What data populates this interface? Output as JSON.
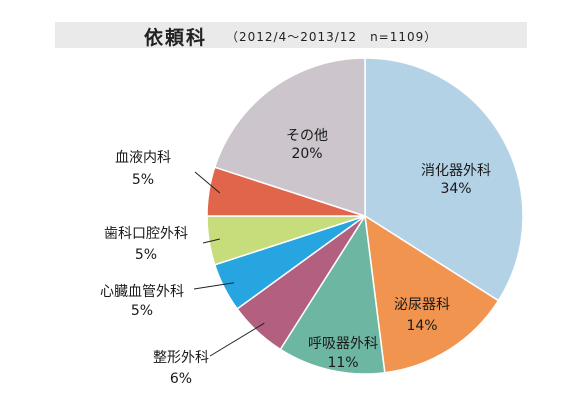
{
  "chart_data": {
    "type": "pie",
    "title": "依頼科",
    "subtitle": "（2012/4～2013/12　n=1109）",
    "slices": [
      {
        "label": "消化器外科",
        "value": 34,
        "value_text": "34%",
        "color": "#b4d2e6"
      },
      {
        "label": "泌尿器科",
        "value": 14,
        "value_text": "14%",
        "color": "#f1944f"
      },
      {
        "label": "呼吸器外科",
        "value": 11,
        "value_text": "11%",
        "color": "#6db6a2"
      },
      {
        "label": "整形外科",
        "value": 6,
        "value_text": "6%",
        "color": "#b35f80"
      },
      {
        "label": "心臓血管外科",
        "value": 5,
        "value_text": "5%",
        "color": "#27a5e0"
      },
      {
        "label": "歯科口腔外科",
        "value": 5,
        "value_text": "5%",
        "color": "#c7dc7a"
      },
      {
        "label": "血液内科",
        "value": 5,
        "value_text": "5%",
        "color": "#e1654b"
      },
      {
        "label": "その他",
        "value": 20,
        "value_text": "20%",
        "color": "#ccc5cc"
      }
    ]
  }
}
